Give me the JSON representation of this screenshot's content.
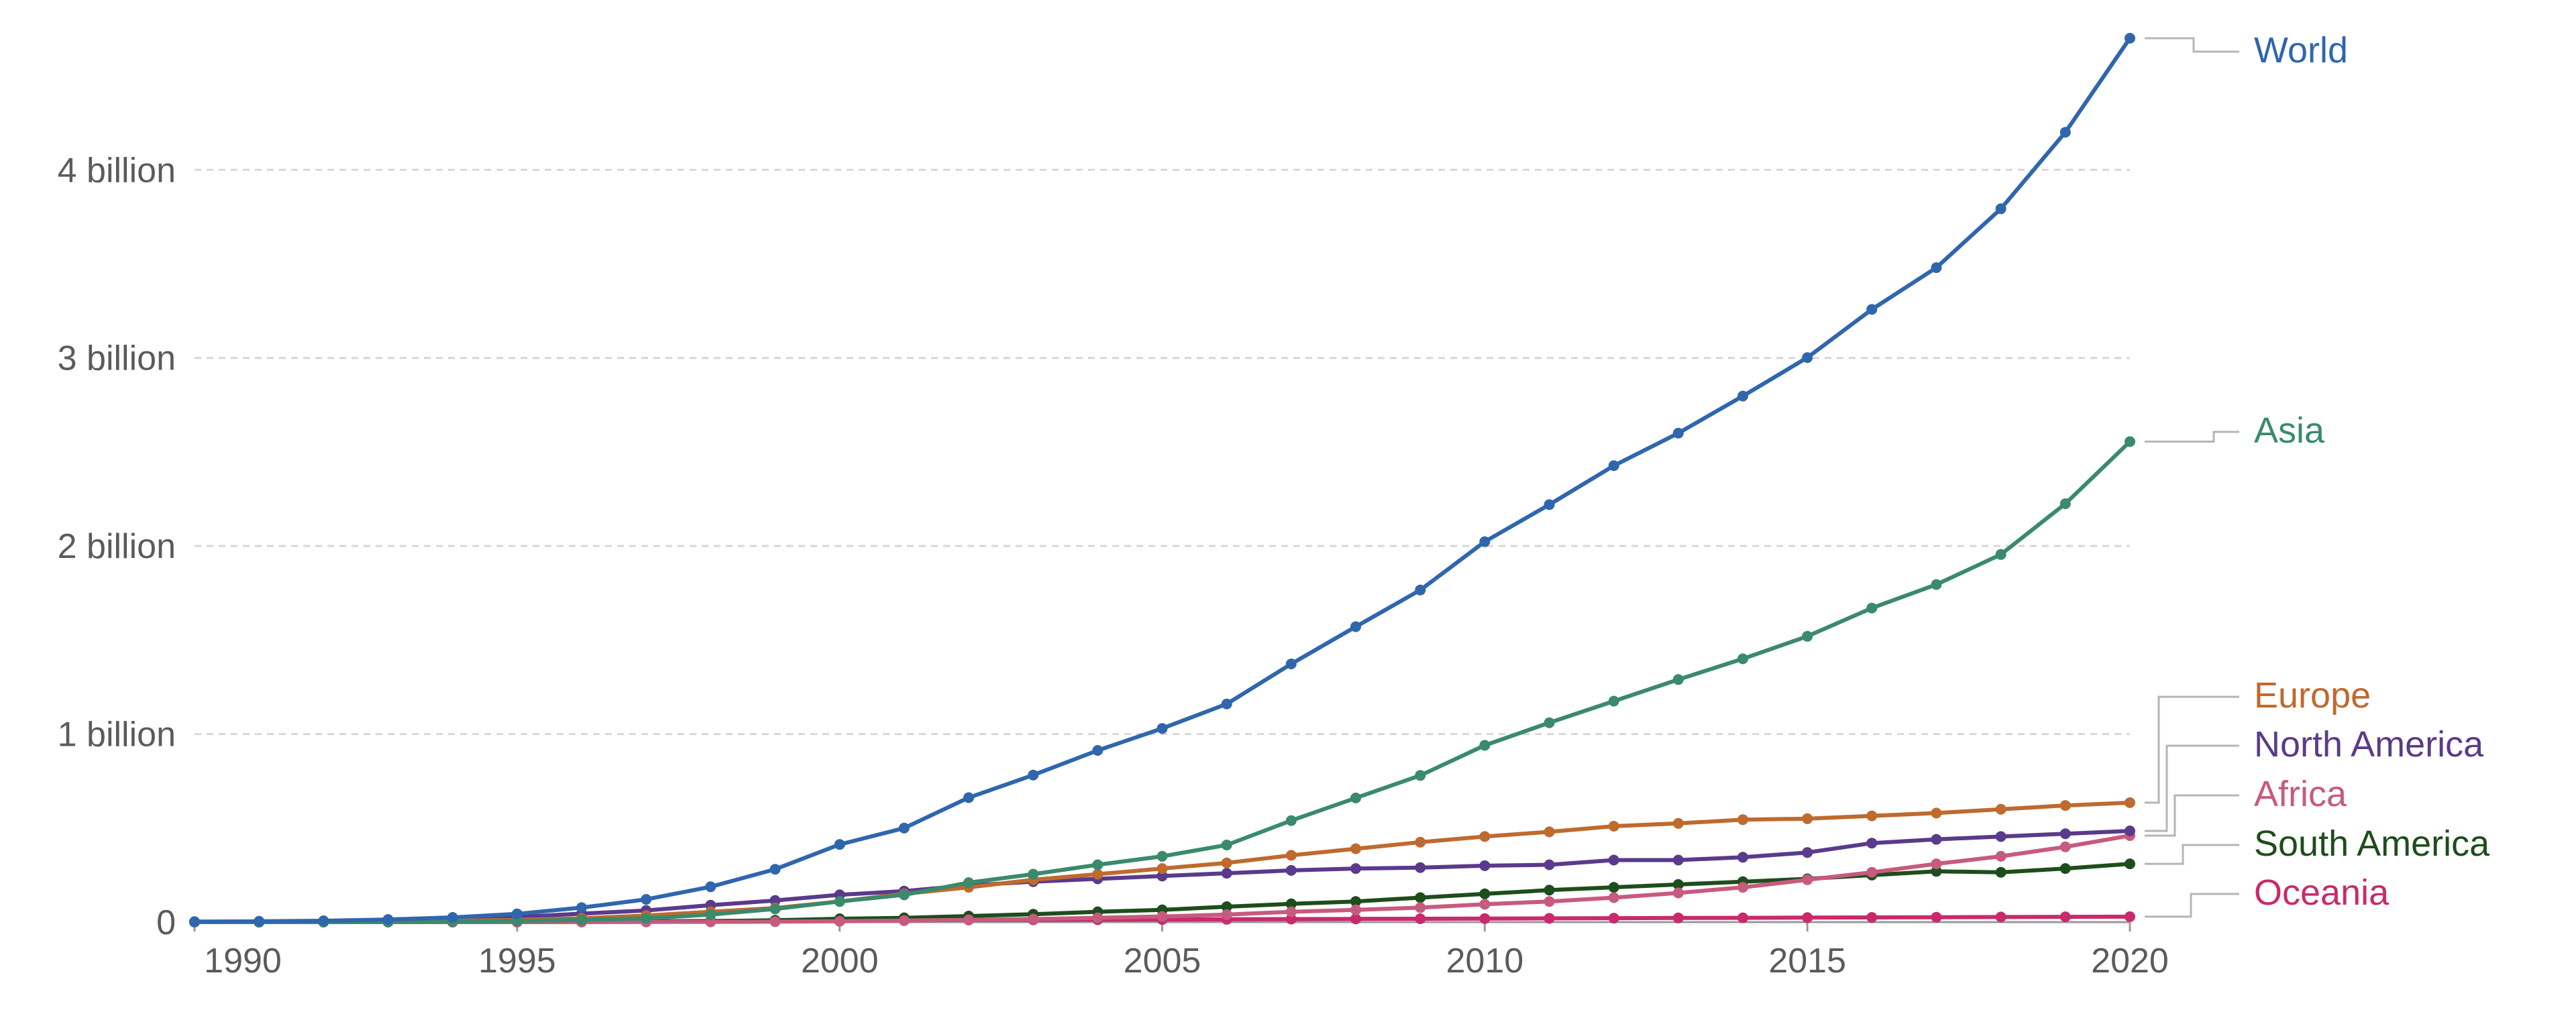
{
  "chart_data": {
    "type": "line",
    "title": "",
    "xlabel": "",
    "ylabel": "",
    "xlim": [
      1990,
      2020
    ],
    "ylim": [
      0,
      4700000000
    ],
    "grid": "horizontal dashed",
    "legend": "inline labels at right end of lines",
    "x_ticks": [
      {
        "value": 1990,
        "label": "1990"
      },
      {
        "value": 1995,
        "label": "1995"
      },
      {
        "value": 2000,
        "label": "2000"
      },
      {
        "value": 2005,
        "label": "2005"
      },
      {
        "value": 2010,
        "label": "2010"
      },
      {
        "value": 2015,
        "label": "2015"
      },
      {
        "value": 2020,
        "label": "2020"
      }
    ],
    "y_ticks": [
      {
        "value": 0,
        "label": "0"
      },
      {
        "value": 1000000000,
        "label": "1 billion"
      },
      {
        "value": 2000000000,
        "label": "2 billion"
      },
      {
        "value": 3000000000,
        "label": "3 billion"
      },
      {
        "value": 4000000000,
        "label": "4 billion"
      }
    ],
    "x": [
      1990,
      1991,
      1992,
      1993,
      1994,
      1995,
      1996,
      1997,
      1998,
      1999,
      2000,
      2001,
      2002,
      2003,
      2004,
      2005,
      2006,
      2007,
      2008,
      2009,
      2010,
      2011,
      2012,
      2013,
      2014,
      2015,
      2016,
      2017,
      2018,
      2019,
      2020
    ],
    "series": [
      {
        "name": "World",
        "color": "#2f66ae",
        "values": [
          2600000,
          4400000,
          7000000,
          14000000,
          25000000,
          44000000,
          77000000,
          121000000,
          188000000,
          281000000,
          413000000,
          500000000,
          662000000,
          782000000,
          913000000,
          1030000000,
          1160000000,
          1373000000,
          1571000000,
          1766000000,
          2023000000,
          2220000000,
          2427000000,
          2600000000,
          2797000000,
          3002000000,
          3258000000,
          3480000000,
          3793000000,
          4200000000,
          4700000000
        ]
      },
      {
        "name": "Asia",
        "color": "#3a8a6c",
        "values": [
          200000,
          400000,
          800000,
          1500000,
          3000000,
          6000000,
          12000000,
          20000000,
          40000000,
          70000000,
          110000000,
          145000000,
          210000000,
          255000000,
          305000000,
          350000000,
          410000000,
          540000000,
          660000000,
          780000000,
          940000000,
          1060000000,
          1175000000,
          1290000000,
          1400000000,
          1520000000,
          1670000000,
          1795000000,
          1955000000,
          2225000000,
          2555000000
        ]
      },
      {
        "name": "Europe",
        "color": "#bf6a2e",
        "values": [
          800000,
          1500000,
          2500000,
          4000000,
          7000000,
          12000000,
          20000000,
          35000000,
          55000000,
          75000000,
          110000000,
          150000000,
          185000000,
          225000000,
          255000000,
          285000000,
          315000000,
          355000000,
          390000000,
          425000000,
          455000000,
          480000000,
          510000000,
          525000000,
          545000000,
          550000000,
          565000000,
          580000000,
          600000000,
          620000000,
          635000000
        ]
      },
      {
        "name": "North America",
        "color": "#5a3a8c",
        "values": [
          1500000,
          2500000,
          4000000,
          8000000,
          15000000,
          27000000,
          45000000,
          62000000,
          90000000,
          115000000,
          145000000,
          165000000,
          195000000,
          215000000,
          230000000,
          245000000,
          260000000,
          275000000,
          285000000,
          290000000,
          300000000,
          305000000,
          330000000,
          330000000,
          345000000,
          370000000,
          420000000,
          440000000,
          455000000,
          470000000,
          485000000
        ]
      },
      {
        "name": "Africa",
        "color": "#c75a7e",
        "values": [
          0,
          0,
          10000,
          30000,
          100000,
          200000,
          400000,
          900000,
          1500000,
          2500000,
          4500000,
          8000000,
          12000000,
          16000000,
          23000000,
          30000000,
          40000000,
          55000000,
          65000000,
          77000000,
          95000000,
          110000000,
          130000000,
          155000000,
          185000000,
          225000000,
          265000000,
          310000000,
          350000000,
          400000000,
          460000000
        ]
      },
      {
        "name": "South America",
        "color": "#1e4d1c",
        "values": [
          0,
          0,
          0,
          0,
          100000,
          300000,
          1000000,
          2500000,
          5000000,
          10000000,
          18000000,
          23000000,
          32000000,
          42000000,
          55000000,
          65000000,
          82000000,
          97000000,
          110000000,
          130000000,
          150000000,
          170000000,
          185000000,
          200000000,
          215000000,
          230000000,
          250000000,
          270000000,
          265000000,
          285000000,
          310000000
        ]
      },
      {
        "name": "Oceania",
        "color": "#c92a6b",
        "values": [
          200000,
          400000,
          600000,
          1000000,
          1500000,
          2500000,
          3500000,
          4500000,
          6000000,
          7500000,
          9000000,
          10000000,
          11000000,
          12000000,
          13000000,
          14000000,
          15000000,
          16000000,
          17000000,
          18000000,
          19000000,
          20000000,
          21000000,
          22000000,
          23000000,
          24000000,
          25000000,
          26000000,
          27000000,
          28000000,
          29000000
        ]
      }
    ]
  }
}
